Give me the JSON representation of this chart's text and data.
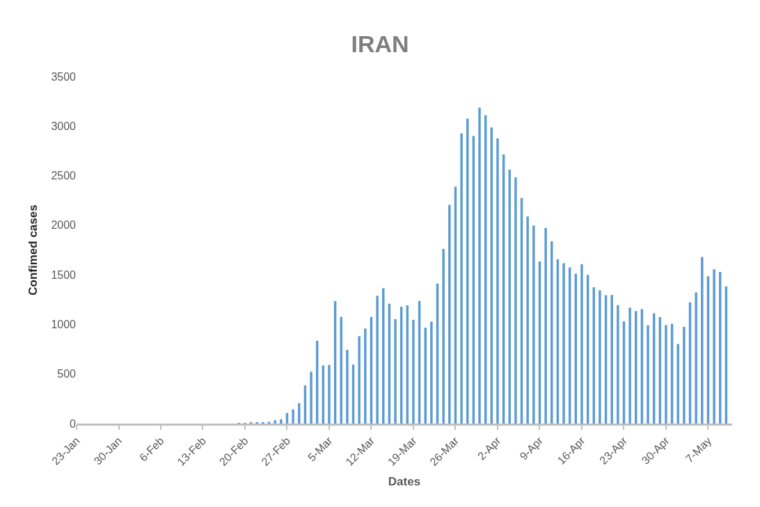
{
  "chart_data": {
    "type": "bar",
    "title": "IRAN",
    "xlabel": "Dates",
    "ylabel": "Confimed cases",
    "x": [
      "--01-23",
      "--01-24",
      "--01-25",
      "--01-26",
      "--01-27",
      "--01-28",
      "--01-29",
      "--01-30",
      "--01-31",
      "--02-01",
      "--02-02",
      "--02-03",
      "--02-04",
      "--02-05",
      "--02-06",
      "--02-07",
      "--02-08",
      "--02-09",
      "--02-10",
      "--02-11",
      "--02-12",
      "--02-13",
      "--02-14",
      "--02-15",
      "--02-16",
      "--02-17",
      "--02-18",
      "--02-19",
      "--02-20",
      "--02-21",
      "--02-22",
      "--02-23",
      "--02-24",
      "--02-25",
      "--02-26",
      "--02-27",
      "--02-28",
      "--02-29",
      "--03-01",
      "--03-02",
      "--03-03",
      "--03-04",
      "--03-05",
      "--03-06",
      "--03-07",
      "--03-08",
      "--03-09",
      "--03-10",
      "--03-11",
      "--03-12",
      "--03-13",
      "--03-14",
      "--03-15",
      "--03-16",
      "--03-17",
      "--03-18",
      "--03-19",
      "--03-20",
      "--03-21",
      "--03-22",
      "--03-23",
      "--03-24",
      "--03-25",
      "--03-26",
      "--03-27",
      "--03-28",
      "--03-29",
      "--03-30",
      "--03-31",
      "--04-01",
      "--04-02",
      "--04-03",
      "--04-04",
      "--04-05",
      "--04-06",
      "--04-07",
      "--04-08",
      "--04-09",
      "--04-10",
      "--04-11",
      "--04-12",
      "--04-13",
      "--04-14",
      "--04-15",
      "--04-16",
      "--04-17",
      "--04-18",
      "--04-19",
      "--04-20",
      "--04-21",
      "--04-22",
      "--04-23",
      "--04-24",
      "--04-25",
      "--04-26",
      "--04-27",
      "--04-28",
      "--04-29",
      "--04-30",
      "--05-01",
      "--05-02",
      "--05-03",
      "--05-04",
      "--05-05",
      "--05-06",
      "--05-07",
      "--05-08",
      "--05-09",
      "--05-10"
    ],
    "values": [
      0,
      0,
      0,
      0,
      0,
      0,
      0,
      0,
      0,
      0,
      0,
      0,
      0,
      0,
      0,
      0,
      0,
      0,
      0,
      0,
      0,
      0,
      0,
      0,
      0,
      0,
      0,
      2,
      3,
      13,
      10,
      15,
      18,
      34,
      44,
      106,
      143,
      205,
      385,
      523,
      835,
      586,
      591,
      1234,
      1076,
      743,
      595,
      881,
      958,
      1075,
      1289,
      1365,
      1209,
      1053,
      1178,
      1192,
      1046,
      1237,
      966,
      1028,
      1411,
      1762,
      2206,
      2389,
      2926,
      3076,
      2901,
      3186,
      3110,
      2987,
      2875,
      2715,
      2560,
      2483,
      2274,
      2089,
      1997,
      1634,
      1972,
      1837,
      1657,
      1617,
      1574,
      1512,
      1606,
      1499,
      1374,
      1343,
      1294,
      1297,
      1194,
      1030,
      1168,
      1134,
      1153,
      991,
      1112,
      1073,
      993,
      1006,
      802,
      976,
      1223,
      1323,
      1680,
      1485,
      1556,
      1529,
      1383
    ],
    "color": "#5b9bd5",
    "xlim": [
      "--01-23",
      "--05-11"
    ],
    "xticks": [
      {
        "value": "--01-23",
        "label": "23-Jan"
      },
      {
        "value": "--01-30",
        "label": "30-Jan"
      },
      {
        "value": "--02-06",
        "label": "6-Feb"
      },
      {
        "value": "--02-13",
        "label": "13-Feb"
      },
      {
        "value": "--02-20",
        "label": "20-Feb"
      },
      {
        "value": "--02-27",
        "label": "27-Feb"
      },
      {
        "value": "--03-05",
        "label": "5-Mar"
      },
      {
        "value": "--03-12",
        "label": "12-Mar"
      },
      {
        "value": "--03-19",
        "label": "19-Mar"
      },
      {
        "value": "--03-26",
        "label": "26-Mar"
      },
      {
        "value": "--04-02",
        "label": "2-Apr"
      },
      {
        "value": "--04-09",
        "label": "9-Apr"
      },
      {
        "value": "--04-16",
        "label": "16-Apr"
      },
      {
        "value": "--04-23",
        "label": "23-Apr"
      },
      {
        "value": "--04-30",
        "label": "30-Apr"
      },
      {
        "value": "--05-07",
        "label": "7-May"
      }
    ],
    "ylim": [
      0,
      3500
    ],
    "yticks": [
      0,
      500,
      1000,
      1500,
      2000,
      2500,
      3000,
      3500
    ]
  }
}
